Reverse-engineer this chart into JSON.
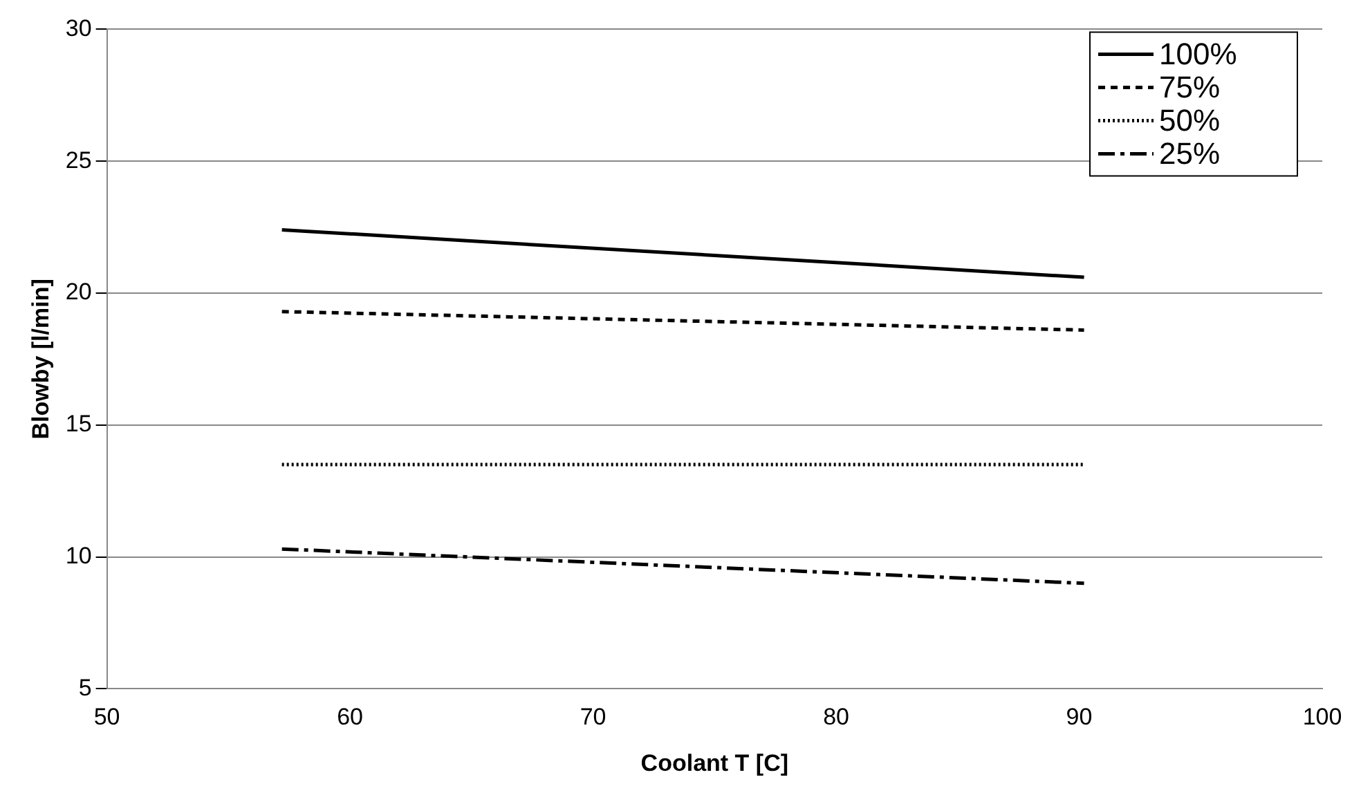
{
  "chart_data": {
    "type": "line",
    "xlabel": "Coolant T [C]",
    "ylabel": "Blowby [l/min]",
    "xlim": [
      50,
      100
    ],
    "xticks": [
      50,
      60,
      70,
      80,
      90,
      100
    ],
    "ylim": [
      5,
      30
    ],
    "yticks": [
      5,
      10,
      15,
      20,
      25,
      30
    ],
    "grid": "y",
    "legend": "top right",
    "marker": "none",
    "x": [
      57.2,
      90.2
    ],
    "series": [
      {
        "name": "100%",
        "color": "#000000",
        "line_style": "solid",
        "values": [
          22.4,
          20.6
        ]
      },
      {
        "name": "75%",
        "color": "#000000",
        "line_style": "dashed",
        "values": [
          19.3,
          18.6
        ]
      },
      {
        "name": "50%",
        "color": "#000000",
        "line_style": "dotted",
        "values": [
          13.5,
          13.5
        ]
      },
      {
        "name": "25%",
        "color": "#000000",
        "line_style": "dashdot",
        "values": [
          10.3,
          9.0
        ]
      }
    ]
  }
}
